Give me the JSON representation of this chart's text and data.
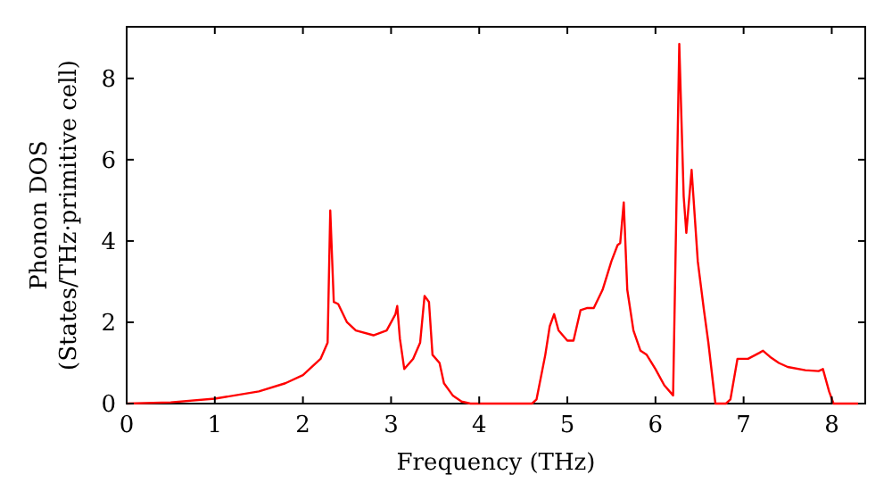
{
  "chart_data": {
    "type": "line",
    "xlabel": "Frequency (THz)",
    "ylabel": "Phonon DOS\n(States/THz·primitive cell)",
    "xlim": [
      0,
      8.38
    ],
    "ylim": [
      0,
      9.27
    ],
    "xticks": [
      0,
      1,
      2,
      3,
      4,
      5,
      6,
      7,
      8
    ],
    "yticks": [
      0,
      2,
      4,
      6,
      8
    ],
    "grid": false,
    "marker": "none",
    "line_style": "solid",
    "series": [
      {
        "color": "#ff0000",
        "x": [
          0,
          0.5,
          1,
          1.5,
          1.8,
          2.0,
          2.2,
          2.28,
          2.31,
          2.35,
          2.4,
          2.5,
          2.6,
          2.8,
          2.95,
          3.05,
          3.07,
          3.1,
          3.15,
          3.25,
          3.33,
          3.38,
          3.43,
          3.47,
          3.55,
          3.6,
          3.7,
          3.8,
          3.9,
          4.6,
          4.65,
          4.75,
          4.8,
          4.85,
          4.9,
          5.0,
          5.07,
          5.15,
          5.22,
          5.3,
          5.4,
          5.5,
          5.57,
          5.6,
          5.64,
          5.68,
          5.75,
          5.83,
          5.9,
          6.0,
          6.1,
          6.2,
          6.27,
          6.32,
          6.35,
          6.41,
          6.48,
          6.55,
          6.6,
          6.68,
          6.8,
          6.85,
          6.93,
          7.05,
          7.18,
          7.22,
          7.3,
          7.4,
          7.5,
          7.7,
          7.85,
          7.9,
          7.97,
          8.02,
          8.3
        ],
        "values": [
          0,
          0.03,
          0.12,
          0.3,
          0.5,
          0.7,
          1.1,
          1.5,
          4.75,
          2.5,
          2.45,
          2.0,
          1.8,
          1.68,
          1.8,
          2.2,
          2.4,
          1.6,
          0.85,
          1.1,
          1.5,
          2.65,
          2.5,
          1.2,
          1.0,
          0.5,
          0.2,
          0.05,
          0,
          0,
          0.1,
          1.2,
          1.9,
          2.2,
          1.8,
          1.55,
          1.55,
          2.3,
          2.35,
          2.35,
          2.8,
          3.5,
          3.9,
          3.95,
          4.95,
          2.8,
          1.8,
          1.3,
          1.2,
          0.85,
          0.45,
          0.2,
          8.85,
          5.1,
          4.2,
          5.75,
          3.5,
          2.3,
          1.5,
          0,
          0,
          0.1,
          1.1,
          1.1,
          1.25,
          1.3,
          1.15,
          1.0,
          0.9,
          0.82,
          0.8,
          0.85,
          0.3,
          0,
          0
        ]
      }
    ]
  }
}
